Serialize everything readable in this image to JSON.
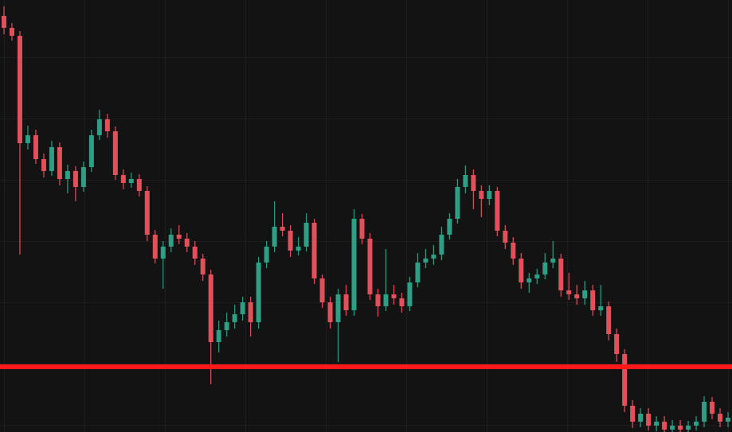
{
  "chart_data": {
    "type": "candlestick",
    "up_color": "#2f9e84",
    "down_color": "#e0525b",
    "ylim": [
      0,
      543
    ],
    "hline": {
      "value": 82,
      "color": "#ff1a1a"
    },
    "open": [
      523,
      508,
      498,
      363,
      373,
      343,
      328,
      358,
      318,
      328,
      308,
      333,
      373,
      393,
      378,
      323,
      313,
      318,
      303,
      248,
      218,
      233,
      248,
      243,
      233,
      218,
      198,
      113,
      128,
      138,
      148,
      163,
      138,
      213,
      233,
      258,
      253,
      228,
      233,
      263,
      193,
      163,
      138,
      173,
      153,
      268,
      243,
      173,
      158,
      173,
      168,
      158,
      188,
      213,
      218,
      223,
      248,
      268,
      308,
      323,
      303,
      293,
      303,
      253,
      238,
      218,
      188,
      193,
      198,
      213,
      218,
      178,
      173,
      168,
      178,
      153,
      158,
      123,
      98,
      33,
      13,
      23,
      8,
      13,
      3,
      8,
      3,
      8,
      13,
      38,
      23,
      13
    ],
    "high": [
      535,
      514,
      504,
      385,
      380,
      350,
      366,
      364,
      336,
      334,
      340,
      380,
      405,
      400,
      384,
      330,
      326,
      324,
      309,
      254,
      240,
      256,
      260,
      250,
      240,
      224,
      204,
      140,
      150,
      160,
      170,
      170,
      220,
      240,
      290,
      275,
      260,
      245,
      275,
      268,
      198,
      170,
      180,
      185,
      280,
      274,
      250,
      180,
      230,
      185,
      175,
      195,
      225,
      230,
      235,
      258,
      275,
      318,
      335,
      330,
      310,
      310,
      308,
      260,
      245,
      225,
      200,
      205,
      225,
      240,
      224,
      200,
      185,
      190,
      185,
      185,
      164,
      130,
      104,
      40,
      30,
      30,
      20,
      20,
      15,
      15,
      14,
      20,
      45,
      44,
      30,
      25
    ],
    "low": [
      500,
      492,
      223,
      355,
      337,
      320,
      322,
      310,
      300,
      290,
      302,
      327,
      367,
      370,
      317,
      305,
      307,
      296,
      240,
      212,
      180,
      226,
      236,
      226,
      210,
      190,
      60,
      100,
      120,
      130,
      140,
      120,
      130,
      206,
      226,
      246,
      220,
      222,
      227,
      186,
      156,
      130,
      88,
      146,
      146,
      236,
      166,
      145,
      152,
      160,
      150,
      152,
      182,
      206,
      210,
      216,
      242,
      262,
      300,
      280,
      270,
      285,
      246,
      230,
      210,
      180,
      175,
      186,
      192,
      206,
      170,
      166,
      160,
      160,
      146,
      146,
      115,
      88,
      25,
      5,
      6,
      2,
      1,
      0,
      0,
      0,
      0,
      2,
      6,
      16,
      6,
      6
    ],
    "close": [
      508,
      498,
      363,
      373,
      343,
      328,
      358,
      318,
      328,
      308,
      333,
      373,
      393,
      378,
      323,
      313,
      318,
      303,
      248,
      218,
      233,
      248,
      243,
      233,
      218,
      198,
      113,
      128,
      138,
      148,
      163,
      138,
      213,
      233,
      258,
      253,
      228,
      233,
      263,
      193,
      163,
      138,
      173,
      153,
      268,
      243,
      173,
      158,
      173,
      168,
      158,
      188,
      213,
      218,
      223,
      248,
      268,
      308,
      323,
      303,
      293,
      303,
      253,
      238,
      218,
      188,
      193,
      198,
      213,
      218,
      178,
      173,
      168,
      178,
      153,
      158,
      123,
      98,
      33,
      13,
      23,
      8,
      13,
      3,
      8,
      3,
      8,
      13,
      38,
      23,
      13,
      18
    ]
  }
}
